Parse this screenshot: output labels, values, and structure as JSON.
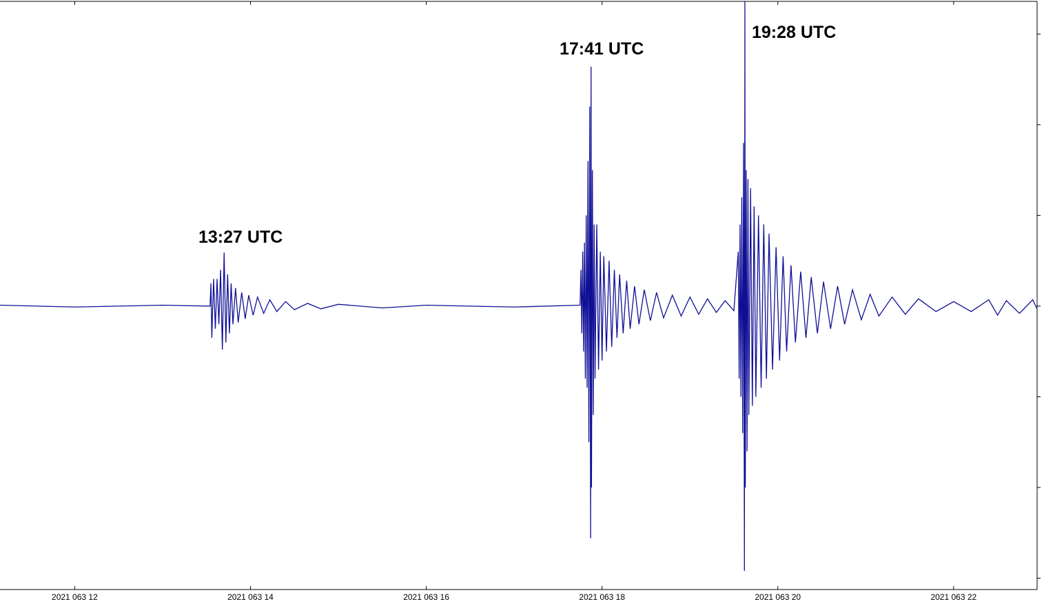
{
  "chart_data": {
    "type": "line",
    "x": [
      11.15,
      12.0,
      13.0,
      13.54,
      13.55,
      13.56,
      13.58,
      13.6,
      13.62,
      13.64,
      13.66,
      13.68,
      13.7,
      13.72,
      13.74,
      13.76,
      13.78,
      13.8,
      13.83,
      13.86,
      13.9,
      13.94,
      13.98,
      14.03,
      14.08,
      14.15,
      14.22,
      14.3,
      14.4,
      14.5,
      14.65,
      14.8,
      15.0,
      15.5,
      16.0,
      17.0,
      17.75,
      17.76,
      17.77,
      17.78,
      17.79,
      17.8,
      17.81,
      17.82,
      17.83,
      17.84,
      17.85,
      17.86,
      17.87,
      17.875,
      17.88,
      17.89,
      17.9,
      17.91,
      17.92,
      17.94,
      17.96,
      17.98,
      18.0,
      18.02,
      18.05,
      18.08,
      18.11,
      18.14,
      18.17,
      18.2,
      18.24,
      18.28,
      18.32,
      18.37,
      18.42,
      18.48,
      18.55,
      18.62,
      18.7,
      18.8,
      18.9,
      19.0,
      19.1,
      19.2,
      19.3,
      19.4,
      19.5,
      19.55,
      19.56,
      19.57,
      19.58,
      19.59,
      19.6,
      19.61,
      19.62,
      19.625,
      19.63,
      19.64,
      19.65,
      19.66,
      19.67,
      19.69,
      19.71,
      19.73,
      19.75,
      19.78,
      19.81,
      19.84,
      19.87,
      19.9,
      19.94,
      19.98,
      20.02,
      20.06,
      20.1,
      20.15,
      20.2,
      20.26,
      20.32,
      20.38,
      20.45,
      20.52,
      20.6,
      20.68,
      20.76,
      20.85,
      20.95,
      21.05,
      21.15,
      21.3,
      21.45,
      21.6,
      21.8,
      22.0,
      22.2,
      22.4,
      22.5,
      22.6,
      22.75,
      22.9,
      22.95
    ],
    "series": [
      {
        "color": "#0f0f96",
        "values": [
          0.01,
          -0.01,
          0.01,
          0,
          0.25,
          -0.35,
          0.3,
          -0.25,
          0.3,
          -0.2,
          0.4,
          -0.48,
          0.59,
          -0.4,
          0.35,
          -0.3,
          0.25,
          -0.2,
          0.2,
          -0.18,
          0.15,
          -0.14,
          0.12,
          -0.1,
          0.1,
          -0.08,
          0.07,
          -0.06,
          0.05,
          -0.04,
          0.03,
          -0.03,
          0.02,
          -0.02,
          0.01,
          -0.01,
          0.01,
          0.4,
          -0.3,
          0.6,
          -0.5,
          0.7,
          -0.8,
          1.0,
          -0.9,
          1.6,
          -1.5,
          2.2,
          -2.56,
          2.64,
          -2.0,
          1.5,
          -1.2,
          0.9,
          -0.8,
          0.9,
          -0.7,
          0.6,
          -0.6,
          0.55,
          -0.5,
          0.5,
          -0.45,
          0.4,
          -0.35,
          0.35,
          -0.3,
          0.28,
          -0.25,
          0.22,
          -0.2,
          0.18,
          -0.16,
          0.15,
          -0.13,
          0.12,
          -0.11,
          0.1,
          -0.09,
          0.08,
          -0.07,
          0.06,
          -0.05,
          0.6,
          -0.8,
          0.9,
          -1.0,
          1.2,
          -1.4,
          1.8,
          -2.92,
          3.36,
          -2.0,
          1.5,
          -1.6,
          1.4,
          -1.2,
          1.3,
          -1.1,
          1.1,
          -1.0,
          1.0,
          -0.9,
          0.9,
          -0.8,
          0.8,
          -0.7,
          0.65,
          -0.6,
          0.55,
          -0.5,
          0.45,
          -0.4,
          0.38,
          -0.35,
          0.32,
          -0.3,
          0.27,
          -0.25,
          0.22,
          -0.2,
          0.18,
          -0.15,
          0.13,
          -0.11,
          0.1,
          -0.09,
          0.08,
          -0.06,
          0.05,
          -0.06,
          0.07,
          -0.1,
          0.06,
          -0.08,
          0.07,
          -0.03
        ]
      }
    ],
    "xlim": [
      11.15,
      22.95
    ],
    "ylim": [
      -3.125,
      3.36
    ],
    "xticks": [
      {
        "value": 12,
        "label": "2021 063 12"
      },
      {
        "value": 14,
        "label": "2021 063 14"
      },
      {
        "value": 16,
        "label": "2021 063 16"
      },
      {
        "value": 18,
        "label": "2021 063 18"
      },
      {
        "value": 20,
        "label": "2021 063 20"
      },
      {
        "value": 22,
        "label": "2021 063 22"
      }
    ],
    "yticks": [
      -3,
      -2,
      -1,
      0,
      1,
      2,
      3
    ],
    "annotations": [
      "13:27 UTC",
      "17:41 UTC",
      "19:28 UTC"
    ]
  }
}
